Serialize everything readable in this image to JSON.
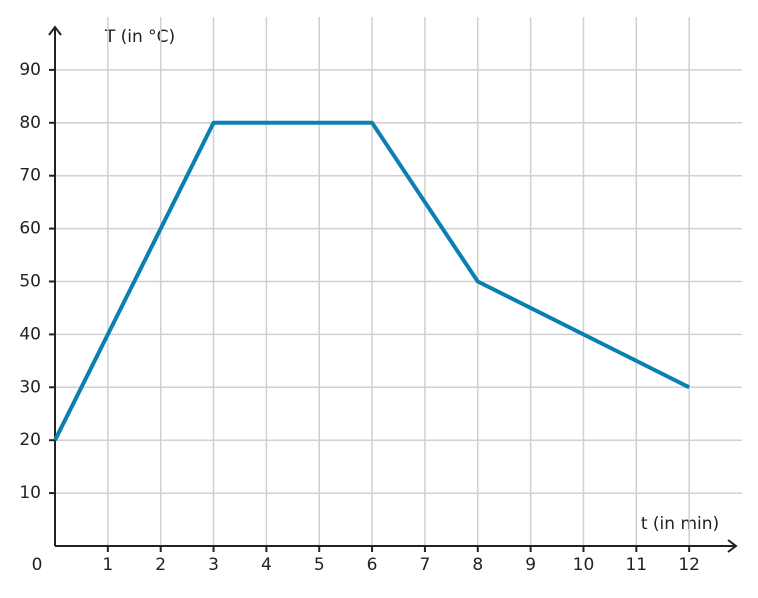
{
  "chart_data": {
    "type": "line",
    "x_label": "t (in min)",
    "y_label": "T (in °C)",
    "x": [
      0,
      3,
      6,
      8,
      12
    ],
    "series": [
      {
        "color": "#0a80b2",
        "values": [
          20,
          80,
          80,
          50,
          30
        ]
      }
    ],
    "xlim": [
      0,
      13
    ],
    "ylim": [
      0,
      100
    ],
    "xticks": [
      0,
      1,
      2,
      3,
      4,
      5,
      6,
      7,
      8,
      9,
      10,
      11,
      12
    ],
    "yticks": [
      10,
      20,
      30,
      40,
      50,
      60,
      70,
      80,
      90
    ],
    "grid": true
  }
}
